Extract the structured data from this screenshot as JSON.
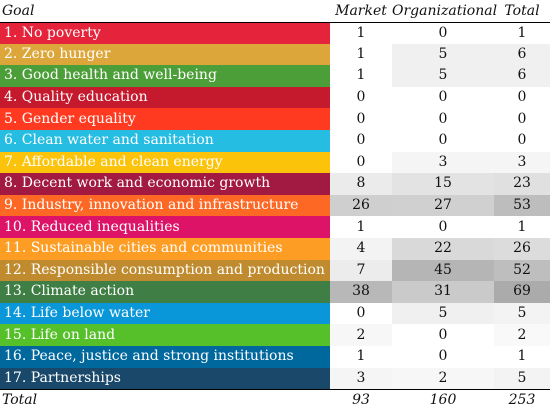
{
  "header": {
    "goal": "Goal",
    "market": "Market",
    "organizational": "Organizational",
    "total": "Total"
  },
  "rows": [
    {
      "goal": "1. No poverty",
      "color": "#e5243b",
      "market": "1",
      "organizational": "0",
      "total": "1",
      "shade": [
        "#ffffff",
        "#ffffff",
        "#ffffff"
      ]
    },
    {
      "goal": "2. Zero hunger",
      "color": "#dda63a",
      "market": "1",
      "organizational": "5",
      "total": "6",
      "shade": [
        "#ffffff",
        "#f0f0f0",
        "#f0f0f0"
      ]
    },
    {
      "goal": "3. Good health and well-being",
      "color": "#4c9f38",
      "market": "1",
      "organizational": "5",
      "total": "6",
      "shade": [
        "#ffffff",
        "#f0f0f0",
        "#f0f0f0"
      ]
    },
    {
      "goal": "4. Quality education",
      "color": "#c5192d",
      "market": "0",
      "organizational": "0",
      "total": "0",
      "shade": [
        "#ffffff",
        "#ffffff",
        "#ffffff"
      ]
    },
    {
      "goal": "5. Gender equality",
      "color": "#ff3a21",
      "market": "0",
      "organizational": "0",
      "total": "0",
      "shade": [
        "#ffffff",
        "#ffffff",
        "#ffffff"
      ]
    },
    {
      "goal": "6. Clean water and sanitation",
      "color": "#26bde2",
      "market": "0",
      "organizational": "0",
      "total": "0",
      "shade": [
        "#ffffff",
        "#ffffff",
        "#ffffff"
      ]
    },
    {
      "goal": "7. Affordable and clean energy",
      "color": "#fcc30b",
      "market": "0",
      "organizational": "3",
      "total": "3",
      "shade": [
        "#ffffff",
        "#f5f5f5",
        "#f5f5f5"
      ]
    },
    {
      "goal": "8. Decent work and economic growth",
      "color": "#a21942",
      "market": "8",
      "organizational": "15",
      "total": "23",
      "shade": [
        "#ebebeb",
        "#e3e3e3",
        "#e0e0e0"
      ]
    },
    {
      "goal": "9. Industry, innovation and infrastructure",
      "color": "#fd6925",
      "market": "26",
      "organizational": "27",
      "total": "53",
      "shade": [
        "#cfcfcf",
        "#d0d0d0",
        "#bdbdbd"
      ]
    },
    {
      "goal": "10. Reduced inequalities",
      "color": "#dd1367",
      "market": "1",
      "organizational": "0",
      "total": "1",
      "shade": [
        "#ffffff",
        "#ffffff",
        "#ffffff"
      ]
    },
    {
      "goal": "11. Sustainable cities and communities",
      "color": "#fd9d24",
      "market": "4",
      "organizational": "22",
      "total": "26",
      "shade": [
        "#f3f3f3",
        "#d9d9d9",
        "#dcdcdc"
      ]
    },
    {
      "goal": "12. Responsible consumption and production",
      "color": "#bf8b2e",
      "market": "7",
      "organizational": "45",
      "total": "52",
      "shade": [
        "#ececec",
        "#b5b5b5",
        "#bebebe"
      ]
    },
    {
      "goal": "13. Climate action",
      "color": "#3f7e44",
      "market": "38",
      "organizational": "31",
      "total": "69",
      "shade": [
        "#b8b8b8",
        "#cacaca",
        "#ababab"
      ]
    },
    {
      "goal": "14. Life below water",
      "color": "#0a97d9",
      "market": "0",
      "organizational": "5",
      "total": "5",
      "shade": [
        "#ffffff",
        "#f0f0f0",
        "#f3f3f3"
      ]
    },
    {
      "goal": "15. Life on land",
      "color": "#56c02b",
      "market": "2",
      "organizational": "0",
      "total": "2",
      "shade": [
        "#f7f7f7",
        "#ffffff",
        "#f9f9f9"
      ]
    },
    {
      "goal": "16. Peace, justice and strong institutions",
      "color": "#00689d",
      "market": "1",
      "organizational": "0",
      "total": "1",
      "shade": [
        "#ffffff",
        "#ffffff",
        "#ffffff"
      ]
    },
    {
      "goal": "17. Partnerships",
      "color": "#19486a",
      "market": "3",
      "organizational": "2",
      "total": "5",
      "shade": [
        "#f5f5f5",
        "#f7f7f7",
        "#f3f3f3"
      ]
    }
  ],
  "footer": {
    "label": "Total",
    "market": "93",
    "organizational": "160",
    "total": "253"
  }
}
